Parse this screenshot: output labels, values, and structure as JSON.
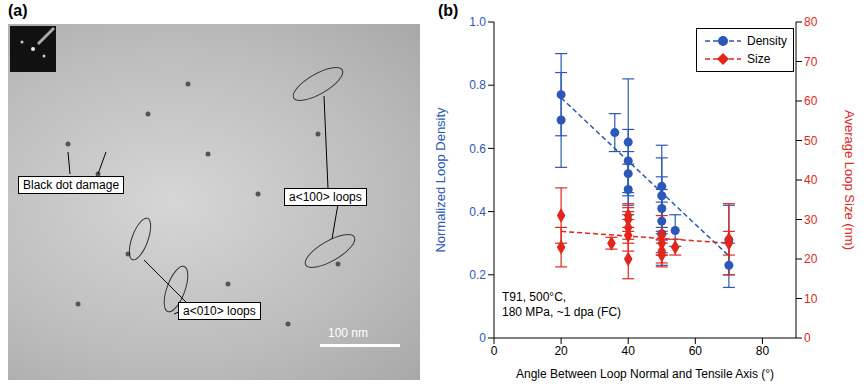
{
  "panel_a": {
    "letter": "(a)",
    "labels": [
      "Black dot damage",
      "a<100> loops",
      "a<010> loops"
    ],
    "scale_bar": "100 nm"
  },
  "chart_data": {
    "type": "scatter",
    "letter": "(b)",
    "x_label": "Angle Between Loop Normal and Tensile Axis (°)",
    "y_label": "Normalized Loop Density",
    "y2_label": "Average Loop Size (nm)",
    "xlim": [
      0,
      90
    ],
    "xticks": [
      0,
      20,
      40,
      60,
      80
    ],
    "ylim": [
      0,
      1
    ],
    "yticks": [
      0,
      0.2,
      0.4,
      0.6,
      0.8,
      {
        "value": 1,
        "label": "1.0"
      }
    ],
    "y2lim": [
      0,
      80
    ],
    "y2ticks": [
      0,
      10,
      20,
      30,
      40,
      50,
      60,
      70,
      80
    ],
    "legend": "upper right",
    "annotations": [
      "T91, 500°C,",
      "180 MPa, ~1 dpa (FC)"
    ],
    "series": [
      {
        "name": "Density",
        "color": "#2b58b8",
        "marker": "circle",
        "line_style": "dashed",
        "x": [
          20,
          20,
          36,
          40,
          40,
          40,
          40,
          50,
          50,
          50,
          50,
          50,
          54,
          70,
          70
        ],
        "values": [
          0.77,
          0.69,
          0.65,
          0.62,
          0.56,
          0.52,
          0.47,
          0.48,
          0.45,
          0.41,
          0.37,
          0.33,
          0.34,
          0.31,
          0.23
        ],
        "errors": [
          0.13,
          0.15,
          0.06,
          0.2,
          0.1,
          0.07,
          0.08,
          0.13,
          0.12,
          0.1,
          0.1,
          0.1,
          0.05,
          0.11,
          0.07
        ],
        "fit": {
          "x": [
            20,
            70
          ],
          "values": [
            0.76,
            0.26
          ]
        }
      },
      {
        "name": "Size",
        "axis": "y2",
        "color": "#e2261c",
        "marker": "diamond",
        "line_style": "dashed",
        "x": [
          20,
          20,
          35,
          40,
          40,
          40,
          40,
          40,
          50,
          50,
          50,
          50,
          54,
          70,
          70
        ],
        "values": [
          31,
          23,
          24,
          31,
          30,
          28,
          26,
          20,
          26,
          24,
          22,
          21,
          23,
          25,
          24
        ],
        "errors": [
          7,
          5,
          1.5,
          3,
          3,
          4,
          4,
          5,
          5,
          3,
          3,
          3,
          2,
          9,
          3
        ],
        "fit": {
          "x": [
            20,
            70
          ],
          "values": [
            27,
            24
          ]
        }
      }
    ]
  }
}
